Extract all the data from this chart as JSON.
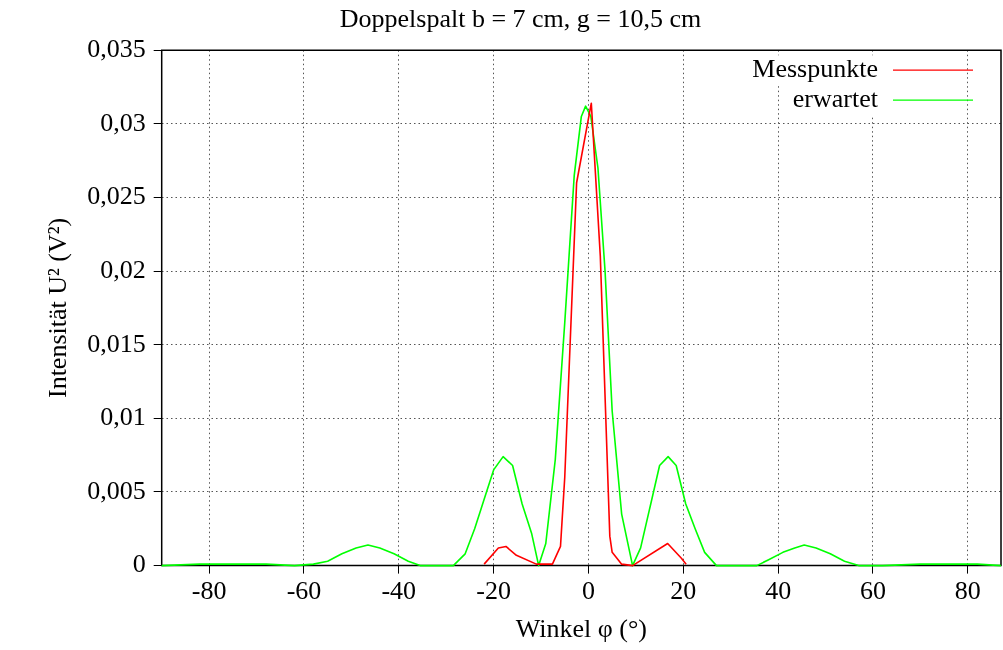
{
  "chart_data": {
    "type": "line",
    "title": "Doppelspalt b = 7 cm, g = 10,5 cm",
    "xlabel": "Winkel φ (°)",
    "ylabel": "Intensität U² (V²)",
    "xlim": [
      -90,
      87
    ],
    "xticks": [
      -80,
      -60,
      -40,
      -20,
      0,
      20,
      40,
      60,
      80
    ],
    "ylim": [
      0,
      0.035
    ],
    "yticks": [
      0,
      {
        "value": 0.005,
        "label": "0,005"
      },
      {
        "value": 0.01,
        "label": "0,01"
      },
      {
        "value": 0.015,
        "label": "0,015"
      },
      {
        "value": 0.02,
        "label": "0,02"
      },
      {
        "value": 0.025,
        "label": "0,025"
      },
      {
        "value": 0.03,
        "label": "0,03"
      },
      {
        "value": 0.035,
        "label": "0,035"
      }
    ],
    "grid": true,
    "legend": "top right",
    "marker": "none",
    "line_style": "solid",
    "series": [
      {
        "name": "Messpunkte",
        "color": "#ff0000",
        "x": [
          -22,
          -19,
          -17.4,
          -15.2,
          -11,
          -7.6,
          -5.9,
          -5,
          -2.5,
          0.6,
          2.5,
          4.5,
          5,
          7,
          9.3,
          16.7,
          19.6,
          20.6
        ],
        "values": [
          0.0001,
          0.0012,
          0.0013,
          0.0007,
          0.0001,
          0.0001,
          0.0013,
          0.006,
          0.026,
          0.0314,
          0.021,
          0.002,
          0.0009,
          0.0001,
          0,
          0.0015,
          0.0005,
          0.0001
        ]
      },
      {
        "name": "erwartet",
        "color": "#00ff00",
        "x": [
          -90,
          -82,
          -75,
          -68,
          -62,
          -58,
          -55,
          -52,
          -49,
          -46.5,
          -44,
          -41,
          -38,
          -35.5,
          -33,
          -28.5,
          -26,
          -24,
          -22,
          -20,
          -18,
          -16,
          -14,
          -12,
          -10.5,
          -9,
          -7,
          -5,
          -3,
          -1.5,
          -0.6,
          0.5,
          2,
          3.5,
          5,
          7,
          9.3,
          11,
          13,
          15,
          16.8,
          18.5,
          20.5,
          22.5,
          24.5,
          27,
          33,
          35.5,
          38,
          41,
          43.5,
          45.5,
          48,
          51,
          54,
          57,
          62,
          70,
          76,
          82,
          87
        ],
        "values": [
          0,
          0.0001,
          0.0001,
          0.0001,
          0,
          0.0001,
          0.0003,
          0.0008,
          0.0012,
          0.0014,
          0.0012,
          0.0008,
          0.0003,
          0,
          0,
          0,
          0.0008,
          0.0025,
          0.0045,
          0.0065,
          0.0074,
          0.0068,
          0.0042,
          0.0022,
          0,
          0.0015,
          0.0072,
          0.0165,
          0.0265,
          0.0305,
          0.0312,
          0.0305,
          0.027,
          0.02,
          0.0105,
          0.0035,
          0,
          0.0012,
          0.004,
          0.0068,
          0.0074,
          0.0068,
          0.0042,
          0.0025,
          0.0009,
          0,
          0,
          0,
          0.0004,
          0.0009,
          0.0012,
          0.0014,
          0.0012,
          0.0008,
          0.0003,
          0,
          0,
          0.0001,
          0.0001,
          0.0001,
          0
        ]
      }
    ]
  }
}
